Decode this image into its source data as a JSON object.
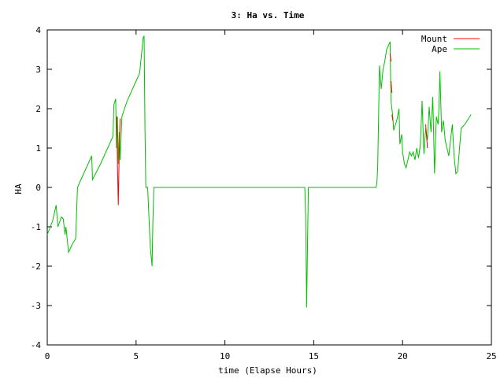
{
  "chart_data": {
    "type": "line",
    "title": "3: Ha vs. Time",
    "xlabel": "time (Elapse Hours)",
    "ylabel": "HA",
    "xlim": [
      0,
      25
    ],
    "ylim": [
      -4,
      4
    ],
    "xticks": [
      "0",
      "5",
      "10",
      "15",
      "20",
      "25"
    ],
    "yticks": [
      "-4",
      "-3",
      "-2",
      "-1",
      "0",
      "1",
      "2",
      "3",
      "4"
    ],
    "grid": false,
    "legend_position": "top-right",
    "series": [
      {
        "name": "Mount",
        "color": "#ff0000",
        "points": [
          [
            3.9,
            1.8
          ],
          [
            4.0,
            -0.45
          ],
          [
            4.05,
            0.9
          ],
          [
            4.1,
            1.75
          ],
          [
            19.3,
            3.4
          ],
          [
            19.35,
            3.2
          ],
          [
            19.35,
            2.7
          ],
          [
            19.4,
            2.4
          ],
          [
            19.4,
            1.85
          ],
          [
            19.45,
            1.7
          ],
          [
            21.3,
            1.6
          ],
          [
            21.4,
            1.0
          ]
        ]
      },
      {
        "name": "Ape",
        "color": "#00c000",
        "points": [
          [
            0.0,
            -1.2
          ],
          [
            0.3,
            -0.85
          ],
          [
            0.5,
            -0.45
          ],
          [
            0.6,
            -1.0
          ],
          [
            0.8,
            -0.75
          ],
          [
            0.9,
            -0.8
          ],
          [
            1.0,
            -1.2
          ],
          [
            1.05,
            -1.0
          ],
          [
            1.2,
            -1.65
          ],
          [
            1.4,
            -1.45
          ],
          [
            1.6,
            -1.3
          ],
          [
            1.7,
            0.0
          ],
          [
            1.8,
            0.1
          ],
          [
            2.0,
            0.3
          ],
          [
            2.3,
            0.6
          ],
          [
            2.5,
            0.8
          ],
          [
            2.55,
            0.2
          ],
          [
            3.0,
            0.6
          ],
          [
            3.2,
            0.8
          ],
          [
            3.5,
            1.1
          ],
          [
            3.7,
            1.3
          ],
          [
            3.75,
            2.1
          ],
          [
            3.85,
            2.25
          ],
          [
            3.9,
            1.0
          ],
          [
            3.95,
            1.8
          ],
          [
            4.0,
            0.6
          ],
          [
            4.05,
            1.4
          ],
          [
            4.1,
            0.7
          ],
          [
            4.2,
            1.8
          ],
          [
            4.5,
            2.2
          ],
          [
            5.2,
            2.9
          ],
          [
            5.4,
            3.8
          ],
          [
            5.45,
            3.85
          ],
          [
            5.5,
            1.5
          ],
          [
            5.55,
            0.0
          ],
          [
            5.65,
            0.0
          ],
          [
            5.8,
            -1.5
          ],
          [
            5.9,
            -2.0
          ],
          [
            5.95,
            -0.8
          ],
          [
            6.0,
            0.0
          ],
          [
            14.5,
            0.0
          ],
          [
            14.55,
            -0.8
          ],
          [
            14.6,
            -3.05
          ],
          [
            14.65,
            -1.5
          ],
          [
            14.7,
            0.0
          ],
          [
            18.5,
            0.0
          ],
          [
            18.55,
            0.1
          ],
          [
            18.6,
            0.5
          ],
          [
            18.7,
            3.1
          ],
          [
            18.8,
            2.5
          ],
          [
            18.9,
            3.0
          ],
          [
            19.0,
            3.2
          ],
          [
            19.1,
            3.5
          ],
          [
            19.3,
            3.7
          ],
          [
            19.35,
            2.2
          ],
          [
            19.45,
            1.8
          ],
          [
            19.5,
            1.45
          ],
          [
            19.6,
            1.6
          ],
          [
            19.7,
            1.75
          ],
          [
            19.8,
            2.0
          ],
          [
            19.85,
            1.1
          ],
          [
            19.95,
            1.35
          ],
          [
            20.0,
            0.9
          ],
          [
            20.1,
            0.6
          ],
          [
            20.2,
            0.5
          ],
          [
            20.3,
            0.7
          ],
          [
            20.4,
            0.9
          ],
          [
            20.5,
            0.8
          ],
          [
            20.6,
            0.9
          ],
          [
            20.7,
            0.7
          ],
          [
            20.8,
            1.0
          ],
          [
            20.9,
            0.75
          ],
          [
            21.0,
            1.1
          ],
          [
            21.1,
            2.2
          ],
          [
            21.2,
            0.85
          ],
          [
            21.3,
            1.5
          ],
          [
            21.4,
            1.2
          ],
          [
            21.5,
            2.05
          ],
          [
            21.6,
            1.4
          ],
          [
            21.7,
            2.3
          ],
          [
            21.8,
            0.35
          ],
          [
            21.9,
            1.8
          ],
          [
            22.0,
            1.6
          ],
          [
            22.05,
            2.0
          ],
          [
            22.1,
            2.95
          ],
          [
            22.2,
            1.4
          ],
          [
            22.3,
            1.7
          ],
          [
            22.4,
            1.2
          ],
          [
            22.5,
            1.0
          ],
          [
            22.6,
            0.8
          ],
          [
            22.7,
            1.2
          ],
          [
            22.8,
            1.6
          ],
          [
            22.9,
            0.8
          ],
          [
            23.0,
            0.35
          ],
          [
            23.1,
            0.4
          ],
          [
            23.3,
            1.5
          ],
          [
            23.5,
            1.6
          ],
          [
            23.85,
            1.85
          ]
        ]
      }
    ]
  }
}
